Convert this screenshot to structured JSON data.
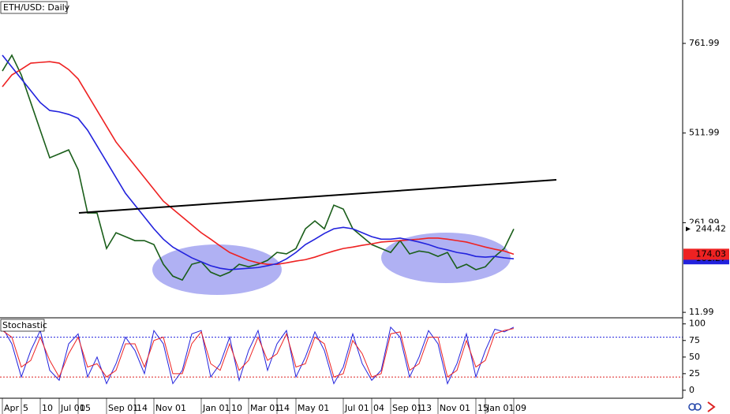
{
  "chart_data": [
    {
      "type": "line",
      "title": "ETH/USD: Daily",
      "ylim": [
        -1,
        883
      ],
      "yticks": [
        761.99,
        511.99,
        261.99,
        11.99
      ],
      "series": [
        {
          "color": "#1a5e1a",
          "values": [
            685,
            729,
            674,
            597,
            520,
            443,
            454,
            465,
            410,
            289,
            289,
            190,
            234,
            223,
            212,
            212,
            201,
            146,
            113,
            102,
            146,
            153,
            124,
            113,
            124,
            146,
            139,
            146,
            157,
            179,
            175,
            190,
            245,
            267,
            245,
            311,
            300,
            245,
            223,
            201,
            190,
            179,
            212,
            175,
            183,
            179,
            168,
            179,
            135,
            146,
            131,
            139,
            168,
            190,
            244.42
          ]
        },
        {
          "color": "#ee2222",
          "values": [
            641,
            674,
            690,
            707,
            709,
            711,
            707,
            689,
            663,
            619,
            575,
            531,
            487,
            454,
            421,
            388,
            355,
            322,
            300,
            278,
            256,
            234,
            216,
            197,
            179,
            168,
            157,
            150,
            146,
            146,
            150,
            155,
            159,
            166,
            175,
            183,
            190,
            194,
            199,
            203,
            208,
            210,
            212,
            214,
            216,
            219,
            219,
            216,
            212,
            208,
            201,
            194,
            188,
            183,
            174.03
          ]
        },
        {
          "color": "#2222dd",
          "values": [
            729,
            696,
            663,
            630,
            597,
            575,
            571,
            564,
            553,
            520,
            476,
            432,
            388,
            344,
            311,
            278,
            245,
            216,
            194,
            179,
            164,
            153,
            142,
            135,
            131,
            133,
            135,
            137,
            142,
            148,
            161,
            179,
            201,
            216,
            232,
            245,
            249,
            245,
            234,
            223,
            216,
            216,
            219,
            214,
            208,
            201,
            192,
            186,
            179,
            175,
            168,
            166,
            168,
            164,
            161.27
          ]
        }
      ]
    },
    {
      "type": "line",
      "title": "Stochastic",
      "ylim": [
        -12,
        108
      ],
      "yticks": [
        100,
        75,
        50,
        25,
        0
      ],
      "levels": [
        80,
        20
      ],
      "categories": [
        "Apr",
        null,
        "5",
        null,
        "10",
        null,
        "Jul 01",
        null,
        "05",
        null,
        null,
        "Sep 01",
        null,
        null,
        "14",
        null,
        "Nov 01",
        null,
        null,
        null,
        null,
        "Jan 01",
        null,
        null,
        "10",
        null,
        "Mar 01",
        null,
        null,
        "14",
        null,
        "May 01",
        null,
        null,
        null,
        null,
        "Jul 01",
        null,
        null,
        "04",
        null,
        "Sep 01",
        null,
        null,
        "13",
        null,
        "Nov 01",
        null,
        null,
        null,
        "15",
        "Jan 01",
        null,
        null,
        "09"
      ],
      "series": [
        {
          "color": "#2222dd",
          "values": [
            95,
            70,
            20,
            60,
            90,
            30,
            15,
            70,
            85,
            20,
            50,
            10,
            40,
            80,
            60,
            25,
            90,
            70,
            10,
            30,
            85,
            90,
            20,
            40,
            80,
            15,
            60,
            90,
            30,
            70,
            90,
            20,
            50,
            88,
            60,
            10,
            35,
            85,
            40,
            15,
            30,
            95,
            80,
            20,
            50,
            90,
            70,
            10,
            40,
            85,
            20,
            60,
            92,
            88,
            95
          ]
        },
        {
          "color": "#ee2222",
          "values": [
            90,
            80,
            35,
            45,
            80,
            45,
            20,
            55,
            80,
            35,
            40,
            20,
            30,
            70,
            70,
            35,
            75,
            80,
            25,
            25,
            70,
            88,
            40,
            30,
            70,
            30,
            45,
            80,
            45,
            55,
            85,
            35,
            40,
            80,
            70,
            20,
            25,
            75,
            55,
            20,
            25,
            85,
            88,
            30,
            40,
            80,
            80,
            20,
            30,
            75,
            35,
            45,
            85,
            90,
            93
          ]
        }
      ]
    }
  ]
}
